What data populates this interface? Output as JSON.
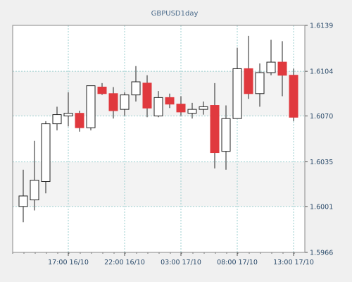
{
  "chart_data": {
    "type": "candlestick",
    "title": "GBPUSD1day",
    "y_ticks": [
      "1.6139",
      "1.6104",
      "1.6070",
      "1.6035",
      "1.6001",
      "1.5966"
    ],
    "x_ticks": [
      "17:00 16/10",
      "22:00 16/10",
      "03:00 17/10",
      "08:00 17/10",
      "13:00 17/10"
    ],
    "ylim": [
      1.5966,
      1.6139
    ],
    "grid": true,
    "colors": {
      "bull_fill": "#ffffff",
      "bear_fill": "#e0393e",
      "wick": "#222222",
      "grid": "#9ccfcf",
      "plot_bg": "#ffffff",
      "band_bg": "#f3f3f3",
      "title": "#4a6a8a",
      "axis_text": "#2a4a6a"
    },
    "candles": [
      {
        "open": 1.6001,
        "high": 1.6029,
        "low": 1.5989,
        "close": 1.6009
      },
      {
        "open": 1.6006,
        "high": 1.6051,
        "low": 1.5998,
        "close": 1.6021
      },
      {
        "open": 1.602,
        "high": 1.6066,
        "low": 1.6011,
        "close": 1.6064
      },
      {
        "open": 1.6064,
        "high": 1.6077,
        "low": 1.6059,
        "close": 1.6071
      },
      {
        "open": 1.607,
        "high": 1.6088,
        "low": 1.6062,
        "close": 1.6072
      },
      {
        "open": 1.6072,
        "high": 1.6074,
        "low": 1.6058,
        "close": 1.6061
      },
      {
        "open": 1.6061,
        "high": 1.6093,
        "low": 1.6059,
        "close": 1.6093
      },
      {
        "open": 1.6092,
        "high": 1.6095,
        "low": 1.6086,
        "close": 1.6087
      },
      {
        "open": 1.6087,
        "high": 1.6092,
        "low": 1.6068,
        "close": 1.6074
      },
      {
        "open": 1.6075,
        "high": 1.6088,
        "low": 1.607,
        "close": 1.6086
      },
      {
        "open": 1.6086,
        "high": 1.6108,
        "low": 1.6081,
        "close": 1.6096
      },
      {
        "open": 1.6095,
        "high": 1.6101,
        "low": 1.6069,
        "close": 1.6076
      },
      {
        "open": 1.607,
        "high": 1.6089,
        "low": 1.6069,
        "close": 1.6084
      },
      {
        "open": 1.6084,
        "high": 1.6087,
        "low": 1.6076,
        "close": 1.6079
      },
      {
        "open": 1.6079,
        "high": 1.6085,
        "low": 1.607,
        "close": 1.6073
      },
      {
        "open": 1.6072,
        "high": 1.608,
        "low": 1.6068,
        "close": 1.6075
      },
      {
        "open": 1.6075,
        "high": 1.6081,
        "low": 1.6071,
        "close": 1.6077
      },
      {
        "open": 1.6078,
        "high": 1.6095,
        "low": 1.603,
        "close": 1.6042
      },
      {
        "open": 1.6043,
        "high": 1.6078,
        "low": 1.6029,
        "close": 1.6068
      },
      {
        "open": 1.6068,
        "high": 1.6122,
        "low": 1.6068,
        "close": 1.6106
      },
      {
        "open": 1.6106,
        "high": 1.6131,
        "low": 1.6083,
        "close": 1.6087
      },
      {
        "open": 1.6087,
        "high": 1.611,
        "low": 1.6077,
        "close": 1.6103
      },
      {
        "open": 1.6103,
        "high": 1.6128,
        "low": 1.6101,
        "close": 1.6111
      },
      {
        "open": 1.6111,
        "high": 1.6127,
        "low": 1.6085,
        "close": 1.6101
      },
      {
        "open": 1.6101,
        "high": 1.6106,
        "low": 1.6066,
        "close": 1.6069
      }
    ]
  }
}
